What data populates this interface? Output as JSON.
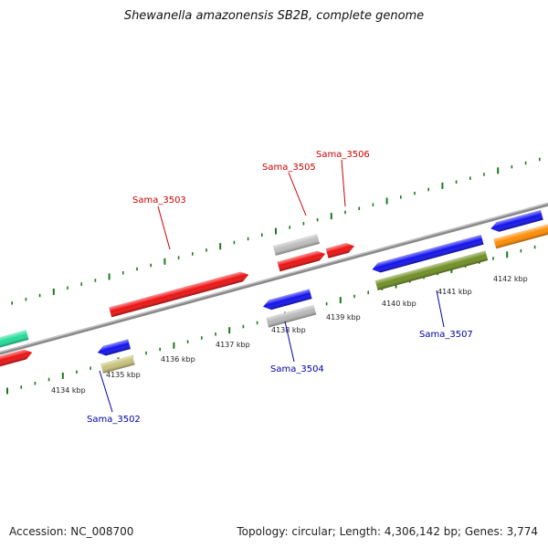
{
  "title": "Shewanella amazonensis SB2B, complete genome",
  "accession": "Accession: NC_008700",
  "topology": "Topology: circular; Length: 4,306,142 bp; Genes: 3,774",
  "colors": {
    "backbone": "#8a8a8a",
    "tick": "#1a7a1a",
    "label_forward": "#cc0000",
    "label_reverse": "#0000aa"
  },
  "ticks": [
    "4134 kbp",
    "4135 kbp",
    "4136 kbp",
    "4137 kbp",
    "4138 kbp",
    "4139 kbp",
    "4140 kbp",
    "4141 kbp",
    "4142 kbp"
  ],
  "genes": [
    {
      "label": "Sama_3502",
      "strand": "reverse",
      "color": "#c8c27a"
    },
    {
      "label": "Sama_3503",
      "strand": "forward",
      "color": "#ee1111"
    },
    {
      "label": "Sama_3504",
      "strand": "reverse",
      "color": "#b8b8b8"
    },
    {
      "label": "Sama_3505",
      "strand": "forward",
      "color": "#bdbdbd"
    },
    {
      "label": "Sama_3506",
      "strand": "forward",
      "color": "#ee1111"
    },
    {
      "label": "Sama_3507",
      "strand": "reverse",
      "color": "#6f8f22"
    }
  ]
}
